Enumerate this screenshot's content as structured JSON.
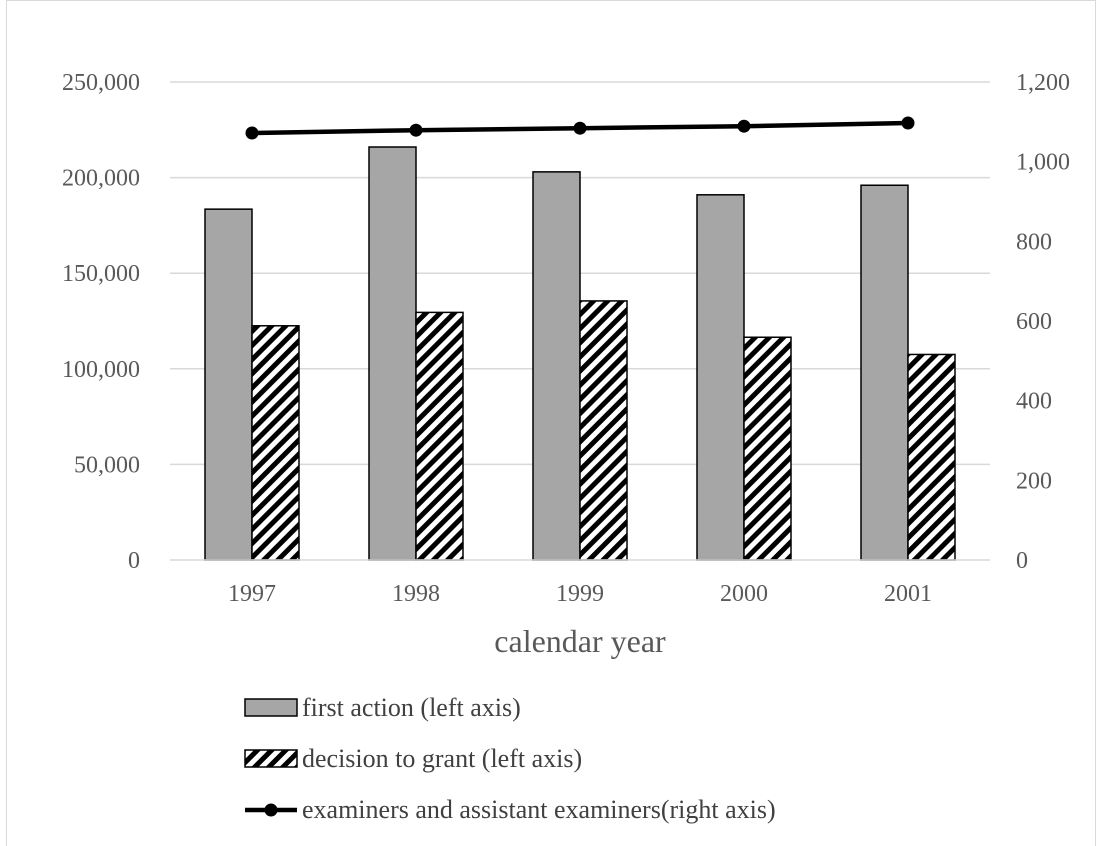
{
  "chart_data": {
    "type": "bar",
    "categories": [
      "1997",
      "1998",
      "1999",
      "2000",
      "2001"
    ],
    "xlabel": "calendar year",
    "left_axis": {
      "ylim": [
        0,
        250000
      ],
      "ticks": [
        "0",
        "50,000",
        "100,000",
        "150,000",
        "200,000",
        "250,000"
      ]
    },
    "right_axis": {
      "ylim": [
        0,
        1200
      ],
      "ticks": [
        "0",
        "200",
        "400",
        "600",
        "800",
        "1,000",
        "1,200"
      ]
    },
    "grid": true,
    "legend_position": "bottom",
    "series": [
      {
        "name": "first action (left axis)",
        "kind": "bar",
        "axis": "left",
        "color": "#a6a6a6",
        "values": [
          183500,
          216000,
          203000,
          191000,
          196000
        ]
      },
      {
        "name": "decision to grant (left axis)",
        "kind": "bar-hatched",
        "axis": "left",
        "color": "#000000",
        "values": [
          122500,
          129500,
          135500,
          116500,
          107500
        ]
      },
      {
        "name": "examiners and assistant examiners(right axis)",
        "kind": "line",
        "axis": "right",
        "color": "#000000",
        "values": [
          1072,
          1079,
          1084,
          1089,
          1097
        ]
      }
    ]
  }
}
